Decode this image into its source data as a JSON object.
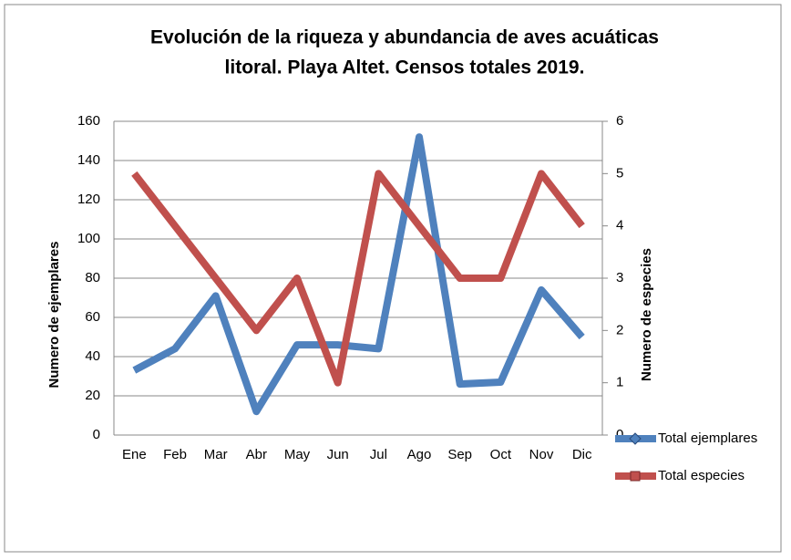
{
  "chart_data": {
    "type": "line",
    "title": [
      "Evolución de la riqueza y abundancia de aves acuáticas",
      "litoral. Playa Altet. Censos totales  2019."
    ],
    "categories": [
      "Ene",
      "Feb",
      "Mar",
      "Abr",
      "May",
      "Jun",
      "Jul",
      "Ago",
      "Sep",
      "Oct",
      "Nov",
      "Dic"
    ],
    "series": [
      {
        "name": "Total ejemplares",
        "color": "#4f81bd",
        "values": [
          33,
          44,
          71,
          12,
          46,
          46,
          44,
          152,
          26,
          27,
          74,
          50
        ]
      },
      {
        "name": "Total especies",
        "color": "#c0504d",
        "axis": "y2",
        "values": [
          5,
          4,
          3,
          2,
          3,
          1,
          5,
          4,
          3,
          3,
          5,
          4
        ]
      }
    ],
    "ylabel": "Numero de ejemplares",
    "y2label": "Numero de especies",
    "ylim": [
      0,
      160
    ],
    "yticks": [
      0,
      20,
      40,
      60,
      80,
      100,
      120,
      140,
      160
    ],
    "y2lim": [
      0,
      6
    ],
    "y2ticks": [
      0,
      1,
      2,
      3,
      4,
      5,
      6
    ],
    "grid": true,
    "legend": "right"
  }
}
